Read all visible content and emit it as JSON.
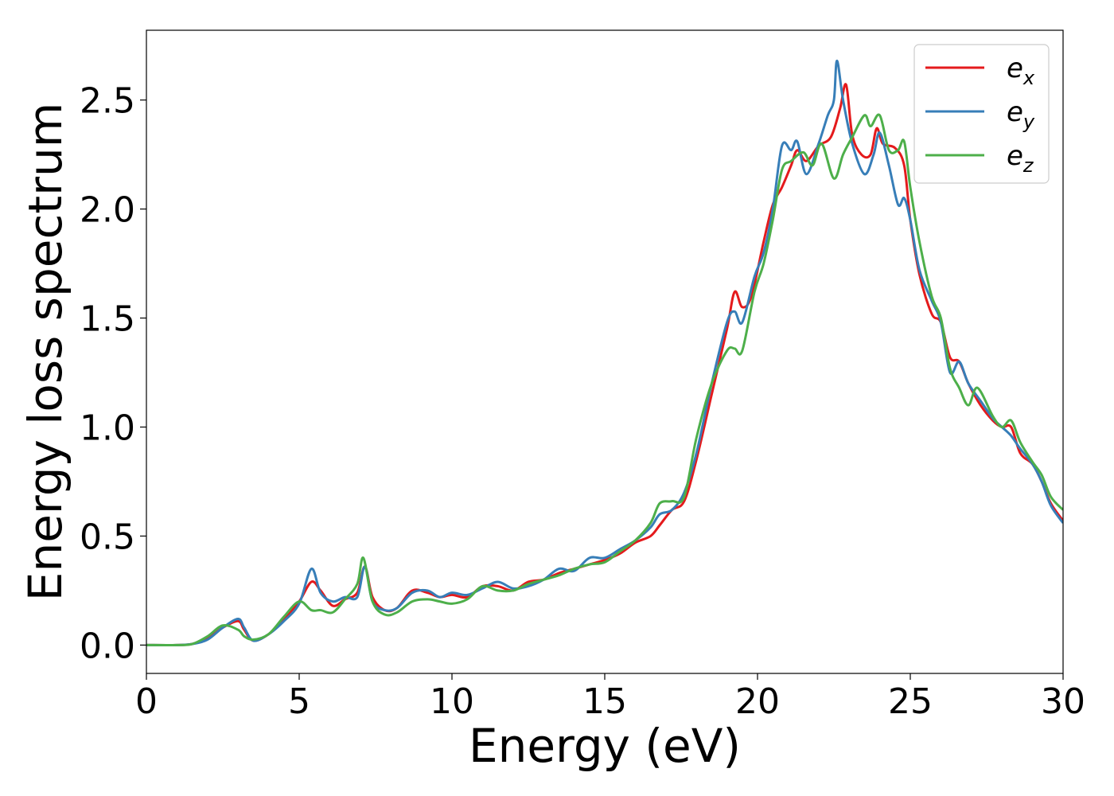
{
  "chart_data": {
    "type": "line",
    "title": "",
    "xlabel": "Energy (eV)",
    "ylabel": "Energy loss spectrum",
    "xlim": [
      0,
      30
    ],
    "ylim": [
      -0.13,
      2.82
    ],
    "xticks": [
      0,
      5,
      10,
      15,
      20,
      25,
      30
    ],
    "xtick_labels": [
      "0",
      "5",
      "10",
      "15",
      "20",
      "25",
      "30"
    ],
    "yticks": [
      0.0,
      0.5,
      1.0,
      1.5,
      2.0,
      2.5
    ],
    "ytick_labels": [
      "0.0",
      "0.5",
      "1.0",
      "1.5",
      "2.0",
      "2.5"
    ],
    "grid": false,
    "legend": "top-right",
    "series": [
      {
        "name": "e",
        "subscript": "x",
        "color": "#e41a1c",
        "points": [
          [
            0,
            0
          ],
          [
            1,
            0
          ],
          [
            1.5,
            0.005
          ],
          [
            2,
            0.03
          ],
          [
            2.5,
            0.08
          ],
          [
            3,
            0.11
          ],
          [
            3.2,
            0.07
          ],
          [
            3.5,
            0.02
          ],
          [
            4,
            0.05
          ],
          [
            4.5,
            0.12
          ],
          [
            5,
            0.2
          ],
          [
            5.4,
            0.29
          ],
          [
            5.7,
            0.25
          ],
          [
            6.1,
            0.18
          ],
          [
            6.5,
            0.21
          ],
          [
            6.9,
            0.24
          ],
          [
            7.15,
            0.36
          ],
          [
            7.4,
            0.22
          ],
          [
            7.8,
            0.16
          ],
          [
            8.2,
            0.17
          ],
          [
            8.7,
            0.25
          ],
          [
            9.2,
            0.24
          ],
          [
            9.6,
            0.22
          ],
          [
            10,
            0.23
          ],
          [
            10.5,
            0.22
          ],
          [
            11,
            0.27
          ],
          [
            11.5,
            0.27
          ],
          [
            12,
            0.25
          ],
          [
            12.5,
            0.29
          ],
          [
            13,
            0.3
          ],
          [
            13.5,
            0.33
          ],
          [
            14,
            0.35
          ],
          [
            14.5,
            0.37
          ],
          [
            15,
            0.39
          ],
          [
            15.5,
            0.42
          ],
          [
            16,
            0.47
          ],
          [
            16.5,
            0.5
          ],
          [
            16.8,
            0.55
          ],
          [
            17.2,
            0.62
          ],
          [
            17.6,
            0.66
          ],
          [
            18,
            0.85
          ],
          [
            18.5,
            1.15
          ],
          [
            19,
            1.45
          ],
          [
            19.25,
            1.62
          ],
          [
            19.5,
            1.55
          ],
          [
            19.8,
            1.6
          ],
          [
            20.2,
            1.85
          ],
          [
            20.5,
            2.02
          ],
          [
            20.8,
            2.1
          ],
          [
            21.1,
            2.2
          ],
          [
            21.3,
            2.27
          ],
          [
            21.6,
            2.22
          ],
          [
            22,
            2.29
          ],
          [
            22.4,
            2.33
          ],
          [
            22.7,
            2.46
          ],
          [
            22.9,
            2.57
          ],
          [
            23.1,
            2.34
          ],
          [
            23.4,
            2.25
          ],
          [
            23.7,
            2.25
          ],
          [
            23.9,
            2.37
          ],
          [
            24.1,
            2.3
          ],
          [
            24.5,
            2.28
          ],
          [
            24.8,
            2.2
          ],
          [
            25,
            1.95
          ],
          [
            25.3,
            1.7
          ],
          [
            25.7,
            1.52
          ],
          [
            26,
            1.48
          ],
          [
            26.3,
            1.32
          ],
          [
            26.6,
            1.3
          ],
          [
            26.9,
            1.2
          ],
          [
            27.3,
            1.1
          ],
          [
            27.7,
            1.03
          ],
          [
            28,
            1.0
          ],
          [
            28.3,
            1.0
          ],
          [
            28.6,
            0.88
          ],
          [
            29,
            0.83
          ],
          [
            29.3,
            0.75
          ],
          [
            29.6,
            0.65
          ],
          [
            30,
            0.57
          ]
        ]
      },
      {
        "name": "e",
        "subscript": "y",
        "color": "#377eb8",
        "points": [
          [
            0,
            0
          ],
          [
            1,
            0
          ],
          [
            1.5,
            0.005
          ],
          [
            2,
            0.025
          ],
          [
            2.5,
            0.08
          ],
          [
            3,
            0.12
          ],
          [
            3.2,
            0.08
          ],
          [
            3.5,
            0.02
          ],
          [
            4,
            0.05
          ],
          [
            4.5,
            0.11
          ],
          [
            5,
            0.19
          ],
          [
            5.4,
            0.35
          ],
          [
            5.7,
            0.24
          ],
          [
            6.1,
            0.2
          ],
          [
            6.5,
            0.22
          ],
          [
            6.9,
            0.22
          ],
          [
            7.15,
            0.36
          ],
          [
            7.4,
            0.2
          ],
          [
            7.8,
            0.16
          ],
          [
            8.2,
            0.17
          ],
          [
            8.7,
            0.24
          ],
          [
            9.2,
            0.25
          ],
          [
            9.6,
            0.22
          ],
          [
            10,
            0.24
          ],
          [
            10.5,
            0.23
          ],
          [
            11,
            0.26
          ],
          [
            11.5,
            0.29
          ],
          [
            12,
            0.26
          ],
          [
            12.5,
            0.27
          ],
          [
            13,
            0.3
          ],
          [
            13.5,
            0.35
          ],
          [
            14,
            0.34
          ],
          [
            14.5,
            0.4
          ],
          [
            15,
            0.4
          ],
          [
            15.5,
            0.44
          ],
          [
            16,
            0.48
          ],
          [
            16.5,
            0.54
          ],
          [
            16.8,
            0.6
          ],
          [
            17.2,
            0.62
          ],
          [
            17.6,
            0.7
          ],
          [
            18,
            0.88
          ],
          [
            18.5,
            1.2
          ],
          [
            19,
            1.48
          ],
          [
            19.25,
            1.53
          ],
          [
            19.5,
            1.48
          ],
          [
            19.9,
            1.69
          ],
          [
            20.2,
            1.8
          ],
          [
            20.5,
            2.0
          ],
          [
            20.8,
            2.29
          ],
          [
            21.1,
            2.27
          ],
          [
            21.3,
            2.31
          ],
          [
            21.6,
            2.16
          ],
          [
            22,
            2.3
          ],
          [
            22.3,
            2.43
          ],
          [
            22.5,
            2.5
          ],
          [
            22.6,
            2.68
          ],
          [
            22.8,
            2.5
          ],
          [
            23.1,
            2.3
          ],
          [
            23.5,
            2.16
          ],
          [
            23.8,
            2.25
          ],
          [
            24,
            2.35
          ],
          [
            24.3,
            2.2
          ],
          [
            24.6,
            2.02
          ],
          [
            24.8,
            2.05
          ],
          [
            25,
            1.95
          ],
          [
            25.3,
            1.72
          ],
          [
            25.7,
            1.58
          ],
          [
            26,
            1.48
          ],
          [
            26.3,
            1.25
          ],
          [
            26.6,
            1.3
          ],
          [
            26.9,
            1.2
          ],
          [
            27.3,
            1.12
          ],
          [
            27.7,
            1.04
          ],
          [
            28,
            1.0
          ],
          [
            28.3,
            0.96
          ],
          [
            28.6,
            0.9
          ],
          [
            29,
            0.83
          ],
          [
            29.3,
            0.75
          ],
          [
            29.6,
            0.64
          ],
          [
            30,
            0.56
          ]
        ]
      },
      {
        "name": "e",
        "subscript": "z",
        "color": "#4daf4a",
        "points": [
          [
            0,
            0
          ],
          [
            1,
            0
          ],
          [
            1.5,
            0.005
          ],
          [
            2,
            0.04
          ],
          [
            2.5,
            0.09
          ],
          [
            3,
            0.07
          ],
          [
            3.2,
            0.04
          ],
          [
            3.5,
            0.025
          ],
          [
            4,
            0.05
          ],
          [
            4.5,
            0.13
          ],
          [
            5,
            0.2
          ],
          [
            5.4,
            0.16
          ],
          [
            5.7,
            0.16
          ],
          [
            6.1,
            0.15
          ],
          [
            6.5,
            0.21
          ],
          [
            6.9,
            0.28
          ],
          [
            7.1,
            0.4
          ],
          [
            7.4,
            0.2
          ],
          [
            7.8,
            0.14
          ],
          [
            8.2,
            0.15
          ],
          [
            8.7,
            0.2
          ],
          [
            9.2,
            0.21
          ],
          [
            9.6,
            0.2
          ],
          [
            10,
            0.19
          ],
          [
            10.5,
            0.21
          ],
          [
            11,
            0.27
          ],
          [
            11.5,
            0.25
          ],
          [
            12,
            0.25
          ],
          [
            12.5,
            0.28
          ],
          [
            13,
            0.3
          ],
          [
            13.5,
            0.32
          ],
          [
            14,
            0.35
          ],
          [
            14.5,
            0.37
          ],
          [
            15,
            0.38
          ],
          [
            15.5,
            0.43
          ],
          [
            16,
            0.48
          ],
          [
            16.5,
            0.56
          ],
          [
            16.8,
            0.65
          ],
          [
            17.2,
            0.66
          ],
          [
            17.6,
            0.68
          ],
          [
            18,
            0.95
          ],
          [
            18.5,
            1.2
          ],
          [
            19,
            1.35
          ],
          [
            19.25,
            1.36
          ],
          [
            19.5,
            1.35
          ],
          [
            19.9,
            1.62
          ],
          [
            20.2,
            1.75
          ],
          [
            20.5,
            1.95
          ],
          [
            20.8,
            2.18
          ],
          [
            21.1,
            2.22
          ],
          [
            21.5,
            2.26
          ],
          [
            21.8,
            2.2
          ],
          [
            22.1,
            2.3
          ],
          [
            22.5,
            2.14
          ],
          [
            22.8,
            2.25
          ],
          [
            23.1,
            2.33
          ],
          [
            23.5,
            2.43
          ],
          [
            23.7,
            2.38
          ],
          [
            24,
            2.43
          ],
          [
            24.3,
            2.27
          ],
          [
            24.6,
            2.27
          ],
          [
            24.8,
            2.31
          ],
          [
            25,
            2.1
          ],
          [
            25.3,
            1.85
          ],
          [
            25.7,
            1.6
          ],
          [
            26,
            1.5
          ],
          [
            26.3,
            1.27
          ],
          [
            26.6,
            1.18
          ],
          [
            26.9,
            1.1
          ],
          [
            27.2,
            1.18
          ],
          [
            27.7,
            1.05
          ],
          [
            28,
            1.0
          ],
          [
            28.3,
            1.03
          ],
          [
            28.6,
            0.93
          ],
          [
            29,
            0.84
          ],
          [
            29.3,
            0.78
          ],
          [
            29.6,
            0.68
          ],
          [
            30,
            0.62
          ]
        ]
      }
    ]
  }
}
